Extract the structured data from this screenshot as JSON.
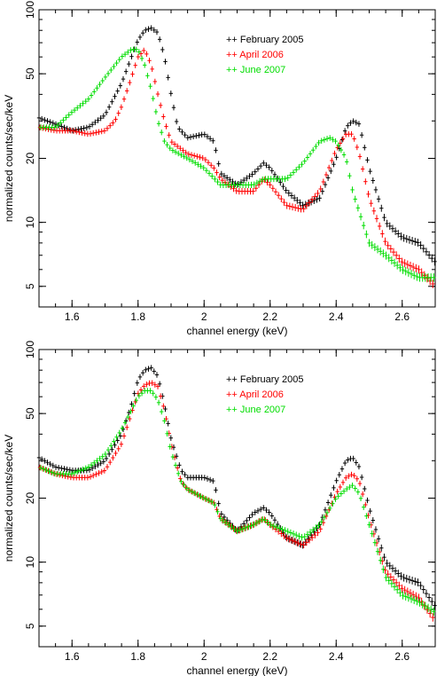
{
  "chart_data": [
    {
      "type": "scatter",
      "xlabel": "channel energy (keV)",
      "ylabel": "normalized counts/sec/keV",
      "xlim": [
        1.5,
        2.7
      ],
      "ylim": [
        4,
        100
      ],
      "yscale": "log",
      "xticks": [
        1.6,
        1.8,
        2.0,
        2.2,
        2.4,
        2.6
      ],
      "xtick_labels": [
        "1.6",
        "1.8",
        "2",
        "2.2",
        "2.4",
        "2.6"
      ],
      "yticks": [
        5,
        10,
        20,
        50,
        100
      ],
      "ytick_labels": [
        "5",
        "10",
        "20",
        "50",
        "100"
      ],
      "legend_position": "top-right",
      "series": [
        {
          "name": "February 2005",
          "color": "#000000",
          "x": [
            1.5,
            1.55,
            1.6,
            1.65,
            1.7,
            1.75,
            1.78,
            1.8,
            1.82,
            1.84,
            1.86,
            1.88,
            1.9,
            1.92,
            1.95,
            2.0,
            2.03,
            2.05,
            2.1,
            2.15,
            2.18,
            2.2,
            2.25,
            2.3,
            2.35,
            2.4,
            2.43,
            2.45,
            2.47,
            2.5,
            2.55,
            2.6,
            2.65,
            2.7
          ],
          "y": [
            31,
            29,
            27,
            28,
            32,
            45,
            60,
            72,
            80,
            82,
            78,
            60,
            40,
            28,
            25,
            26,
            24,
            17,
            15,
            17,
            19,
            18,
            14,
            12,
            13,
            20,
            28,
            30,
            29,
            18,
            10,
            8.5,
            8,
            6.5
          ]
        },
        {
          "name": "April 2006",
          "color": "#ff0000",
          "x": [
            1.5,
            1.55,
            1.6,
            1.65,
            1.7,
            1.73,
            1.75,
            1.78,
            1.8,
            1.82,
            1.84,
            1.86,
            1.88,
            1.9,
            1.95,
            2.0,
            2.03,
            2.05,
            2.1,
            2.15,
            2.18,
            2.2,
            2.25,
            2.3,
            2.35,
            2.4,
            2.43,
            2.45,
            2.47,
            2.5,
            2.55,
            2.6,
            2.65,
            2.7
          ],
          "y": [
            28,
            27,
            27,
            26,
            27,
            30,
            35,
            48,
            60,
            65,
            55,
            40,
            30,
            24,
            21,
            20,
            18,
            16,
            14,
            14,
            16,
            15,
            12,
            11.5,
            14,
            22,
            26,
            26,
            21,
            13,
            8,
            6.5,
            6,
            5
          ]
        },
        {
          "name": "June 2007",
          "color": "#00dd00",
          "x": [
            1.5,
            1.55,
            1.6,
            1.65,
            1.7,
            1.75,
            1.78,
            1.8,
            1.82,
            1.84,
            1.86,
            1.88,
            1.9,
            1.95,
            2.0,
            2.05,
            2.1,
            2.15,
            2.18,
            2.2,
            2.25,
            2.3,
            2.35,
            2.38,
            2.4,
            2.43,
            2.45,
            2.5,
            2.55,
            2.6,
            2.65,
            2.7
          ],
          "y": [
            28,
            28,
            33,
            38,
            48,
            60,
            65,
            65,
            55,
            42,
            30,
            24,
            22,
            20,
            18,
            15,
            15,
            15,
            16,
            16,
            16,
            19,
            24,
            25,
            24,
            20,
            14,
            8,
            7,
            6,
            5.5,
            5.5
          ]
        }
      ]
    },
    {
      "type": "scatter",
      "xlabel": "channel energy (keV)",
      "ylabel": "normalized counts/sec/keV",
      "xlim": [
        1.5,
        2.7
      ],
      "ylim": [
        4,
        100
      ],
      "yscale": "log",
      "xticks": [
        1.6,
        1.8,
        2.0,
        2.2,
        2.4,
        2.6
      ],
      "xtick_labels": [
        "1.6",
        "1.8",
        "2",
        "2.2",
        "2.4",
        "2.6"
      ],
      "yticks": [
        5,
        10,
        20,
        50,
        100
      ],
      "ytick_labels": [
        "5",
        "10",
        "20",
        "50",
        "100"
      ],
      "legend_position": "top-right",
      "series": [
        {
          "name": "February 2005",
          "color": "#000000",
          "x": [
            1.5,
            1.55,
            1.6,
            1.65,
            1.7,
            1.75,
            1.78,
            1.8,
            1.82,
            1.84,
            1.86,
            1.88,
            1.9,
            1.93,
            1.95,
            2.0,
            2.03,
            2.05,
            2.1,
            2.15,
            2.18,
            2.2,
            2.25,
            2.3,
            2.35,
            2.4,
            2.43,
            2.45,
            2.47,
            2.5,
            2.55,
            2.6,
            2.65,
            2.7
          ],
          "y": [
            31,
            28,
            27,
            27,
            30,
            40,
            55,
            72,
            80,
            82,
            75,
            55,
            38,
            27,
            25,
            25,
            24,
            17,
            14,
            17,
            18,
            17,
            13,
            12,
            15,
            24,
            30,
            31,
            28,
            18,
            10,
            8.5,
            8,
            6.2
          ]
        },
        {
          "name": "April 2006",
          "color": "#ff0000",
          "x": [
            1.5,
            1.55,
            1.6,
            1.65,
            1.7,
            1.75,
            1.78,
            1.8,
            1.82,
            1.84,
            1.86,
            1.88,
            1.9,
            1.93,
            1.95,
            2.0,
            2.03,
            2.05,
            2.1,
            2.15,
            2.18,
            2.2,
            2.25,
            2.3,
            2.35,
            2.4,
            2.43,
            2.45,
            2.47,
            2.5,
            2.55,
            2.6,
            2.65,
            2.7
          ],
          "y": [
            28,
            26,
            25,
            25,
            27,
            36,
            50,
            62,
            68,
            70,
            67,
            52,
            36,
            24,
            22,
            20,
            19,
            16,
            14,
            15,
            16,
            15,
            13,
            12,
            14,
            21,
            25,
            26,
            24,
            16,
            9,
            7.5,
            6.8,
            5.3
          ]
        },
        {
          "name": "June 2007",
          "color": "#00dd00",
          "x": [
            1.5,
            1.55,
            1.6,
            1.65,
            1.7,
            1.75,
            1.78,
            1.8,
            1.82,
            1.84,
            1.86,
            1.88,
            1.9,
            1.93,
            1.95,
            2.0,
            2.03,
            2.05,
            2.1,
            2.15,
            2.18,
            2.2,
            2.25,
            2.3,
            2.35,
            2.4,
            2.43,
            2.45,
            2.47,
            2.5,
            2.55,
            2.6,
            2.65,
            2.7
          ],
          "y": [
            28,
            26,
            26,
            28,
            32,
            42,
            52,
            60,
            64,
            64,
            58,
            46,
            33,
            24,
            22,
            20,
            19,
            16,
            14,
            15,
            16,
            15,
            14,
            13,
            15,
            20,
            22,
            23,
            21,
            15,
            8.5,
            7,
            6.5,
            5.8
          ]
        }
      ]
    }
  ]
}
